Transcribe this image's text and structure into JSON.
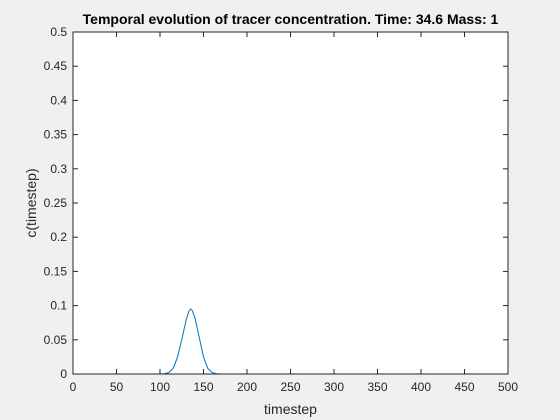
{
  "colors": {
    "figure_background": "#f0f0f0",
    "axes_background": "#ffffff",
    "axis_color": "#262626",
    "line_color": "#0072bd"
  },
  "chart_data": {
    "type": "line",
    "title": "Temporal evolution of tracer concentration. Time: 34.6 Mass: 1",
    "xlabel": "timestep",
    "ylabel": "c(timestep)",
    "xlim": [
      0,
      500
    ],
    "ylim": [
      0,
      0.5
    ],
    "xticks": [
      0,
      50,
      100,
      150,
      200,
      250,
      300,
      350,
      400,
      450,
      500
    ],
    "yticks": [
      0,
      0.05,
      0.1,
      0.15,
      0.2,
      0.25,
      0.3,
      0.35,
      0.4,
      0.45,
      0.5
    ],
    "grid": false,
    "legend": "none",
    "box": true,
    "series": [
      {
        "x": [
          0,
          100,
          105,
          110,
          115,
          120,
          125,
          130,
          133,
          135,
          137,
          140,
          145,
          150,
          155,
          160,
          165,
          170,
          200,
          300,
          400,
          500
        ],
        "y": [
          0,
          0,
          0.0004,
          0.002,
          0.008,
          0.024,
          0.05,
          0.079,
          0.091,
          0.095,
          0.093,
          0.083,
          0.054,
          0.025,
          0.008,
          0.002,
          0.0004,
          0,
          0,
          0,
          0,
          0
        ]
      }
    ]
  }
}
